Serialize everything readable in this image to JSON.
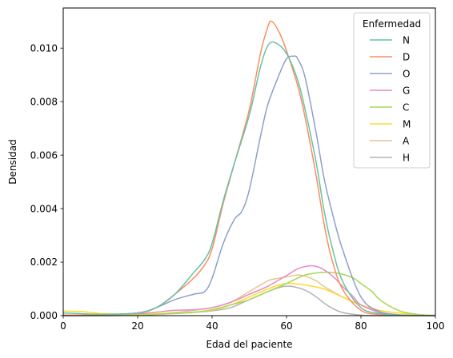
{
  "chart_data": {
    "type": "line",
    "xlabel": "Edad del paciente",
    "ylabel": "Densidad",
    "xlim": [
      0,
      100
    ],
    "ylim": [
      0,
      0.0115
    ],
    "xticks": [
      0,
      20,
      40,
      60,
      80,
      100
    ],
    "xtick_labels": [
      "0",
      "20",
      "40",
      "60",
      "80",
      "100"
    ],
    "yticks": [
      0,
      0.002,
      0.004,
      0.006,
      0.008,
      0.01
    ],
    "ytick_labels": [
      "0.000",
      "0.002",
      "0.004",
      "0.006",
      "0.008",
      "0.010"
    ],
    "grid": false,
    "legend": {
      "title": "Enfermedad",
      "placement": "top-right"
    },
    "series": [
      {
        "name": "N",
        "color": "#66c2a5",
        "x": [
          0,
          10,
          20,
          25,
          30,
          35,
          38,
          40,
          43,
          46,
          50,
          53,
          55,
          57,
          60,
          63,
          65,
          68,
          70,
          72,
          75,
          80,
          85,
          90,
          95,
          100
        ],
        "y": [
          0.0001,
          5e-05,
          0.0001,
          0.0003,
          0.0008,
          0.0016,
          0.0021,
          0.0027,
          0.0043,
          0.0057,
          0.0075,
          0.0093,
          0.0101,
          0.0102,
          0.0098,
          0.0088,
          0.0077,
          0.0057,
          0.004,
          0.0027,
          0.0013,
          0.0003,
          8e-05,
          2e-05,
          5e-06,
          0
        ]
      },
      {
        "name": "D",
        "color": "#fc8d62",
        "x": [
          0,
          10,
          20,
          25,
          30,
          35,
          38,
          40,
          43,
          46,
          50,
          53,
          55,
          56,
          58,
          60,
          63,
          65,
          68,
          70,
          72,
          75,
          80,
          85,
          90,
          100
        ],
        "y": [
          2e-05,
          3e-05,
          0.0001,
          0.0003,
          0.0008,
          0.0014,
          0.0019,
          0.0025,
          0.0042,
          0.0057,
          0.0077,
          0.0098,
          0.0108,
          0.011,
          0.0106,
          0.0099,
          0.0086,
          0.0074,
          0.0052,
          0.0035,
          0.0022,
          0.001,
          0.0002,
          4e-05,
          5e-06,
          0
        ]
      },
      {
        "name": "O",
        "color": "#8da0cb",
        "x": [
          0,
          10,
          20,
          25,
          30,
          35,
          38,
          40,
          43,
          46,
          48,
          50,
          53,
          55,
          58,
          60,
          62,
          63,
          65,
          68,
          70,
          72,
          75,
          80,
          85,
          90,
          95,
          100
        ],
        "y": [
          2e-05,
          3e-05,
          0.0001,
          0.0003,
          0.0006,
          0.0008,
          0.0009,
          0.0014,
          0.0027,
          0.0036,
          0.0039,
          0.0047,
          0.0067,
          0.0079,
          0.009,
          0.0096,
          0.0097,
          0.0096,
          0.0089,
          0.0068,
          0.0052,
          0.004,
          0.0025,
          0.0007,
          0.00015,
          3e-05,
          1e-05,
          0
        ]
      },
      {
        "name": "G",
        "color": "#e78ac3",
        "x": [
          0,
          10,
          20,
          25,
          30,
          35,
          40,
          45,
          50,
          55,
          60,
          63,
          66,
          68,
          70,
          73,
          75,
          78,
          80,
          85,
          90,
          95,
          100
        ],
        "y": [
          0,
          2e-05,
          7e-05,
          0.00013,
          0.0002,
          0.00022,
          0.0003,
          0.0005,
          0.0008,
          0.0011,
          0.0015,
          0.00175,
          0.00186,
          0.00184,
          0.00172,
          0.0014,
          0.0011,
          0.0007,
          0.0004,
          0.00012,
          3e-05,
          5e-06,
          0
        ]
      },
      {
        "name": "C",
        "color": "#a6d854",
        "x": [
          0,
          10,
          20,
          30,
          35,
          40,
          45,
          50,
          55,
          60,
          65,
          70,
          73,
          75,
          78,
          80,
          83,
          85,
          90,
          95,
          100
        ],
        "y": [
          0,
          5e-06,
          2e-05,
          9e-05,
          0.00013,
          0.00022,
          0.0004,
          0.0006,
          0.0009,
          0.0012,
          0.00152,
          0.00162,
          0.0016,
          0.00155,
          0.0014,
          0.0012,
          0.0009,
          0.0006,
          0.0002,
          5e-05,
          1e-05
        ]
      },
      {
        "name": "M",
        "color": "#ffd92f",
        "x": [
          0,
          5,
          10,
          15,
          20,
          25,
          30,
          35,
          40,
          45,
          50,
          55,
          58,
          60,
          63,
          65,
          70,
          75,
          80,
          85,
          90,
          95,
          100
        ],
        "y": [
          0.00017,
          0.00015,
          8e-05,
          6e-05,
          5e-05,
          7e-05,
          0.0001,
          0.00013,
          0.0002,
          0.0004,
          0.0007,
          0.001,
          0.00115,
          0.0012,
          0.00118,
          0.00115,
          0.001,
          0.0007,
          0.0004,
          0.0002,
          0.0001,
          4e-05,
          1e-05
        ]
      },
      {
        "name": "A",
        "color": "#e5c494",
        "x": [
          0,
          10,
          20,
          30,
          35,
          40,
          45,
          50,
          55,
          58,
          60,
          63,
          65,
          68,
          70,
          75,
          80,
          85,
          90,
          95,
          100
        ],
        "y": [
          0,
          0,
          3e-05,
          0.00012,
          0.0002,
          0.0003,
          0.0005,
          0.0009,
          0.0013,
          0.0014,
          0.00145,
          0.00152,
          0.00148,
          0.0013,
          0.0011,
          0.0007,
          0.0004,
          0.00015,
          4e-05,
          1e-05,
          0
        ]
      },
      {
        "name": "H",
        "color": "#b3b3b3",
        "x": [
          0,
          10,
          20,
          30,
          35,
          40,
          45,
          50,
          55,
          58,
          60,
          62,
          65,
          68,
          70,
          72,
          75,
          80,
          85,
          90,
          100
        ],
        "y": [
          0,
          0,
          2e-05,
          8e-05,
          0.00012,
          0.00018,
          0.0003,
          0.0006,
          0.0009,
          0.00105,
          0.0011,
          0.00108,
          0.00095,
          0.0007,
          0.00048,
          0.0003,
          0.00012,
          2e-05,
          0,
          0,
          0
        ]
      }
    ]
  }
}
